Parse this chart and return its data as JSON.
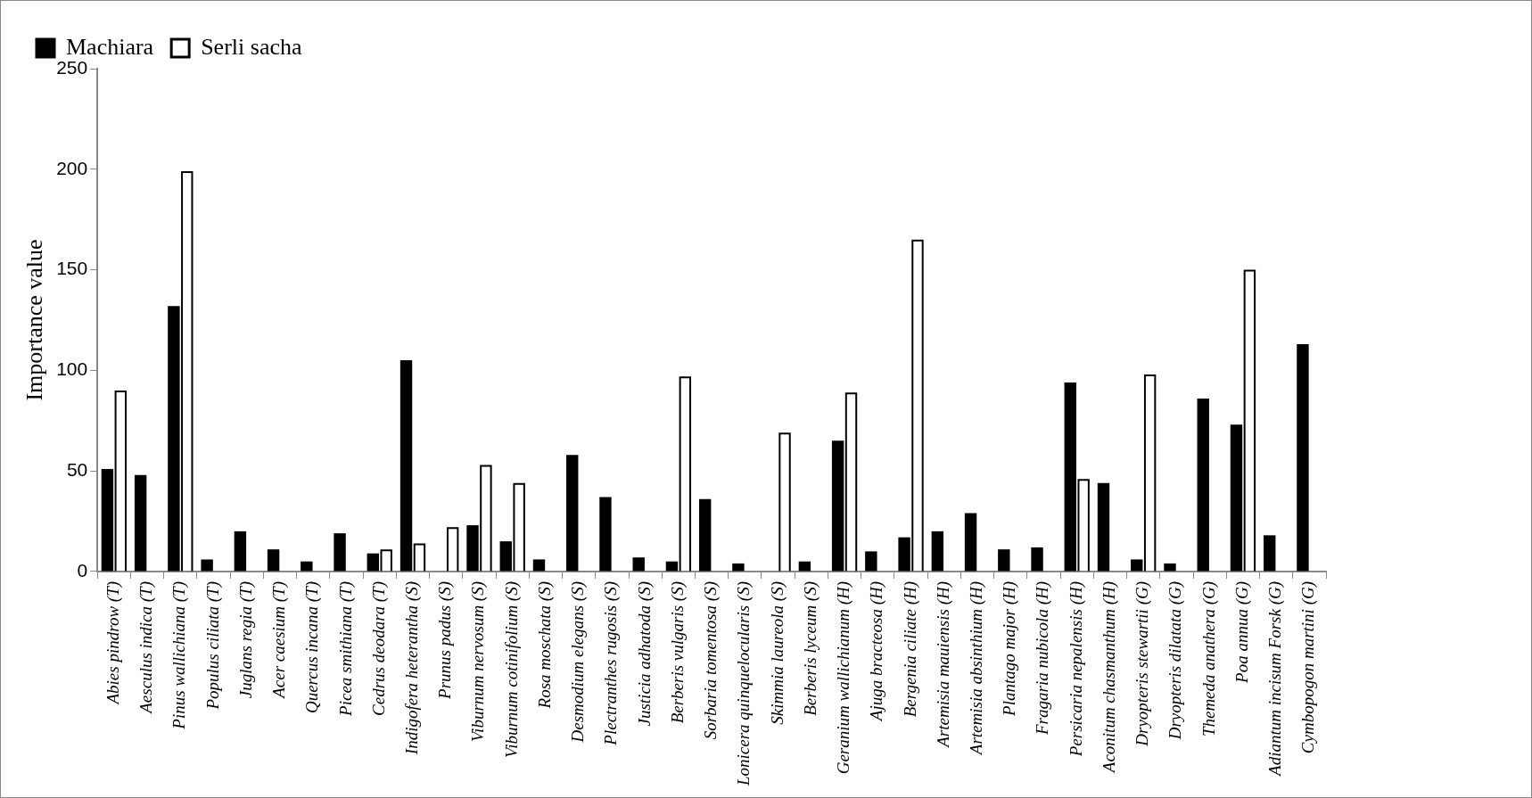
{
  "chart_data": {
    "type": "bar",
    "ylabel": "Importance value",
    "categories": [
      "Abies pindrow (T)",
      "Aesculus indica (T)",
      "Pinus wallichiana (T)",
      "Populus ciliata (T)",
      "Juglans regia (T)",
      "Acer caesium (T)",
      "Quercus incana (T)",
      "Picea smithiana (T)",
      "Cedrus deodara (T)",
      "Indigofera heterantha (S)",
      "Prunus padus (S)",
      "Viburnum nervosum (S)",
      "Viburnum cotinifolium (S)",
      "Rosa moschata (S)",
      "Desmodium elegans (S)",
      "Plectranthes rugosis (S)",
      "Justicia adhatoda (S)",
      "Berberis vulgaris (S)",
      "Sorbaria tomentosa (S)",
      "Lonicera quinquelocularis (S)",
      "Skimmia laureola (S)",
      "Berberis lyceum (S)",
      "Geranium wallichianum (H)",
      "Ajuga bracteosa (H)",
      "Bergenia ciliate (H)",
      "Artemisia mauiensis (H)",
      "Artemisia absinthium (H)",
      "Plantago major (H)",
      "Fragaria nubicola (H)",
      "Persicaria nepalensis (H)",
      "Aconitum chasmanthum (H)",
      "Dryopteris stewartii (G)",
      "Dryopteris dilatata (G)",
      "Themeda anathera (G)",
      "Poa annua (G)",
      "Adiantum incisum Forsk (G)",
      "Cymbopogon martini (G)"
    ],
    "series": [
      {
        "name": "Machiara",
        "color": "#000000",
        "values": [
          51,
          48,
          132,
          6,
          20,
          11,
          5,
          19,
          9,
          105,
          null,
          23,
          15,
          6,
          58,
          37,
          7,
          5,
          36,
          4,
          null,
          5,
          65,
          10,
          17,
          20,
          29,
          11,
          12,
          94,
          44,
          6,
          4,
          86,
          73,
          18,
          113
        ]
      },
      {
        "name": "Serli sacha",
        "color": "#000000",
        "values": [
          90,
          null,
          199,
          null,
          null,
          null,
          null,
          null,
          11,
          14,
          22,
          53,
          44,
          null,
          null,
          null,
          null,
          97,
          null,
          null,
          69,
          null,
          89,
          null,
          165,
          null,
          null,
          null,
          null,
          46,
          null,
          98,
          null,
          null,
          150,
          null,
          null
        ]
      }
    ],
    "ylim": [
      0,
      250
    ],
    "yticks": [
      0,
      50,
      100,
      150,
      200,
      250
    ],
    "grid": false,
    "legend": "top"
  }
}
